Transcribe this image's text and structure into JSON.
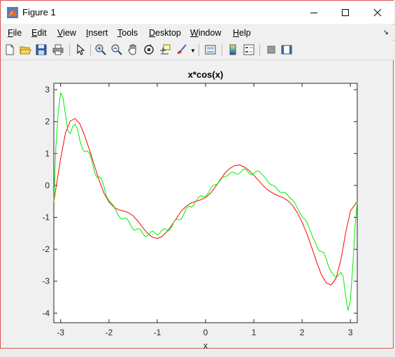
{
  "window": {
    "title": "Figure 1"
  },
  "menu": [
    "File",
    "Edit",
    "View",
    "Insert",
    "Tools",
    "Desktop",
    "Window",
    "Help"
  ],
  "menu_underline_index": [
    0,
    0,
    0,
    0,
    0,
    0,
    0,
    0
  ],
  "toolbar_icons": [
    "new-figure-icon",
    "open-file-icon",
    "save-icon",
    "print-icon",
    "select-arrow-icon",
    "zoom-in-icon",
    "zoom-out-icon",
    "pan-icon",
    "rotate-3d-icon",
    "data-cursor-icon",
    "brush-icon",
    "brush-dropdown-icon",
    "link-plot-icon",
    "colorbar-icon",
    "legend-icon",
    "hide-plot-tools-icon",
    "show-plot-tools-icon"
  ],
  "chart_data": {
    "type": "line",
    "title": "x*cos(x)",
    "xlabel": "x",
    "ylabel": "",
    "xlim": [
      -3.1416,
      3.1416
    ],
    "ylim": [
      -4.3,
      3.2
    ],
    "xticks": [
      -3,
      -2,
      -1,
      0,
      1,
      2,
      3
    ],
    "yticks": [
      -4,
      -3,
      -2,
      -1,
      0,
      1,
      2,
      3
    ],
    "series": [
      {
        "color": "#ff0000",
        "x": [
          -3.1416,
          -3.0,
          -2.9,
          -2.8,
          -2.7,
          -2.6,
          -2.5,
          -2.4,
          -2.3,
          -2.2,
          -2.1,
          -2.0,
          -1.9,
          -1.8,
          -1.7,
          -1.6,
          -1.5,
          -1.4,
          -1.3,
          -1.2,
          -1.1,
          -1.0,
          -0.9,
          -0.8,
          -0.7,
          -0.6,
          -0.5,
          -0.4,
          -0.3,
          -0.2,
          -0.1,
          0.0,
          0.1,
          0.2,
          0.3,
          0.4,
          0.5,
          0.6,
          0.7,
          0.8,
          0.9,
          1.0,
          1.1,
          1.2,
          1.3,
          1.4,
          1.5,
          1.6,
          1.7,
          1.8,
          1.9,
          2.0,
          2.1,
          2.2,
          2.3,
          2.4,
          2.5,
          2.6,
          2.7,
          2.8,
          2.9,
          3.0,
          3.1416
        ],
        "y": [
          -0.5,
          0.85,
          1.65,
          2.02,
          2.1,
          1.92,
          1.55,
          1.1,
          0.62,
          0.15,
          -0.25,
          -0.52,
          -0.68,
          -0.76,
          -0.8,
          -0.85,
          -0.95,
          -1.12,
          -1.32,
          -1.5,
          -1.62,
          -1.66,
          -1.6,
          -1.45,
          -1.25,
          -1.02,
          -0.8,
          -0.65,
          -0.55,
          -0.5,
          -0.45,
          -0.38,
          -0.25,
          -0.05,
          0.17,
          0.38,
          0.53,
          0.62,
          0.64,
          0.58,
          0.47,
          0.32,
          0.15,
          -0.02,
          -0.15,
          -0.25,
          -0.32,
          -0.38,
          -0.47,
          -0.62,
          -0.85,
          -1.15,
          -1.52,
          -1.95,
          -2.4,
          -2.8,
          -3.05,
          -3.12,
          -2.92,
          -2.35,
          -1.5,
          -0.8,
          -0.5
        ]
      },
      {
        "color": "#00ee00",
        "x": [
          -3.1416,
          -3.1,
          -3.05,
          -3.0,
          -2.95,
          -2.9,
          -2.85,
          -2.8,
          -2.75,
          -2.7,
          -2.65,
          -2.6,
          -2.55,
          -2.5,
          -2.45,
          -2.4,
          -2.35,
          -2.3,
          -2.25,
          -2.2,
          -2.15,
          -2.1,
          -2.05,
          -2.0,
          -1.95,
          -1.9,
          -1.85,
          -1.8,
          -1.75,
          -1.7,
          -1.65,
          -1.6,
          -1.55,
          -1.5,
          -1.45,
          -1.4,
          -1.35,
          -1.3,
          -1.25,
          -1.2,
          -1.15,
          -1.1,
          -1.05,
          -1.0,
          -0.95,
          -0.9,
          -0.85,
          -0.8,
          -0.75,
          -0.7,
          -0.65,
          -0.6,
          -0.55,
          -0.5,
          -0.45,
          -0.4,
          -0.35,
          -0.3,
          -0.25,
          -0.2,
          -0.15,
          -0.1,
          -0.05,
          0.0,
          0.05,
          0.1,
          0.15,
          0.2,
          0.25,
          0.3,
          0.35,
          0.4,
          0.45,
          0.5,
          0.55,
          0.6,
          0.65,
          0.7,
          0.75,
          0.8,
          0.85,
          0.9,
          0.95,
          1.0,
          1.05,
          1.1,
          1.15,
          1.2,
          1.25,
          1.3,
          1.35,
          1.4,
          1.45,
          1.5,
          1.55,
          1.6,
          1.65,
          1.7,
          1.75,
          1.8,
          1.85,
          1.9,
          1.95,
          2.0,
          2.05,
          2.1,
          2.15,
          2.2,
          2.25,
          2.3,
          2.35,
          2.4,
          2.45,
          2.5,
          2.55,
          2.6,
          2.65,
          2.7,
          2.75,
          2.8,
          2.85,
          2.9,
          2.95,
          3.0,
          3.05,
          3.1,
          3.1416
        ],
        "y": [
          -0.5,
          1.2,
          2.3,
          2.9,
          2.75,
          2.2,
          1.72,
          1.62,
          1.85,
          1.92,
          1.75,
          1.4,
          1.15,
          1.05,
          1.08,
          1.0,
          0.75,
          0.42,
          0.25,
          0.27,
          0.2,
          -0.05,
          -0.35,
          -0.48,
          -0.55,
          -0.65,
          -0.8,
          -0.95,
          -1.05,
          -1.05,
          -1.02,
          -1.1,
          -1.25,
          -1.38,
          -1.4,
          -1.35,
          -1.38,
          -1.5,
          -1.6,
          -1.58,
          -1.48,
          -1.42,
          -1.48,
          -1.55,
          -1.5,
          -1.4,
          -1.35,
          -1.4,
          -1.42,
          -1.3,
          -1.12,
          -1.05,
          -1.08,
          -1.05,
          -0.9,
          -0.72,
          -0.65,
          -0.68,
          -0.63,
          -0.5,
          -0.38,
          -0.32,
          -0.35,
          -0.35,
          -0.25,
          -0.1,
          0.0,
          0.02,
          0.05,
          0.15,
          0.25,
          0.28,
          0.3,
          0.37,
          0.42,
          0.4,
          0.35,
          0.38,
          0.45,
          0.52,
          0.48,
          0.38,
          0.33,
          0.38,
          0.45,
          0.45,
          0.38,
          0.3,
          0.22,
          0.1,
          0.03,
          0.0,
          -0.05,
          -0.15,
          -0.22,
          -0.22,
          -0.22,
          -0.3,
          -0.4,
          -0.45,
          -0.55,
          -0.7,
          -0.85,
          -0.98,
          -1.05,
          -1.15,
          -1.35,
          -1.55,
          -1.72,
          -1.9,
          -2.05,
          -2.07,
          -2.1,
          -2.3,
          -2.55,
          -2.7,
          -2.8,
          -2.9,
          -2.82,
          -2.72,
          -2.85,
          -3.45,
          -3.92,
          -3.6,
          -2.5,
          -1.2,
          -0.5
        ]
      }
    ]
  }
}
